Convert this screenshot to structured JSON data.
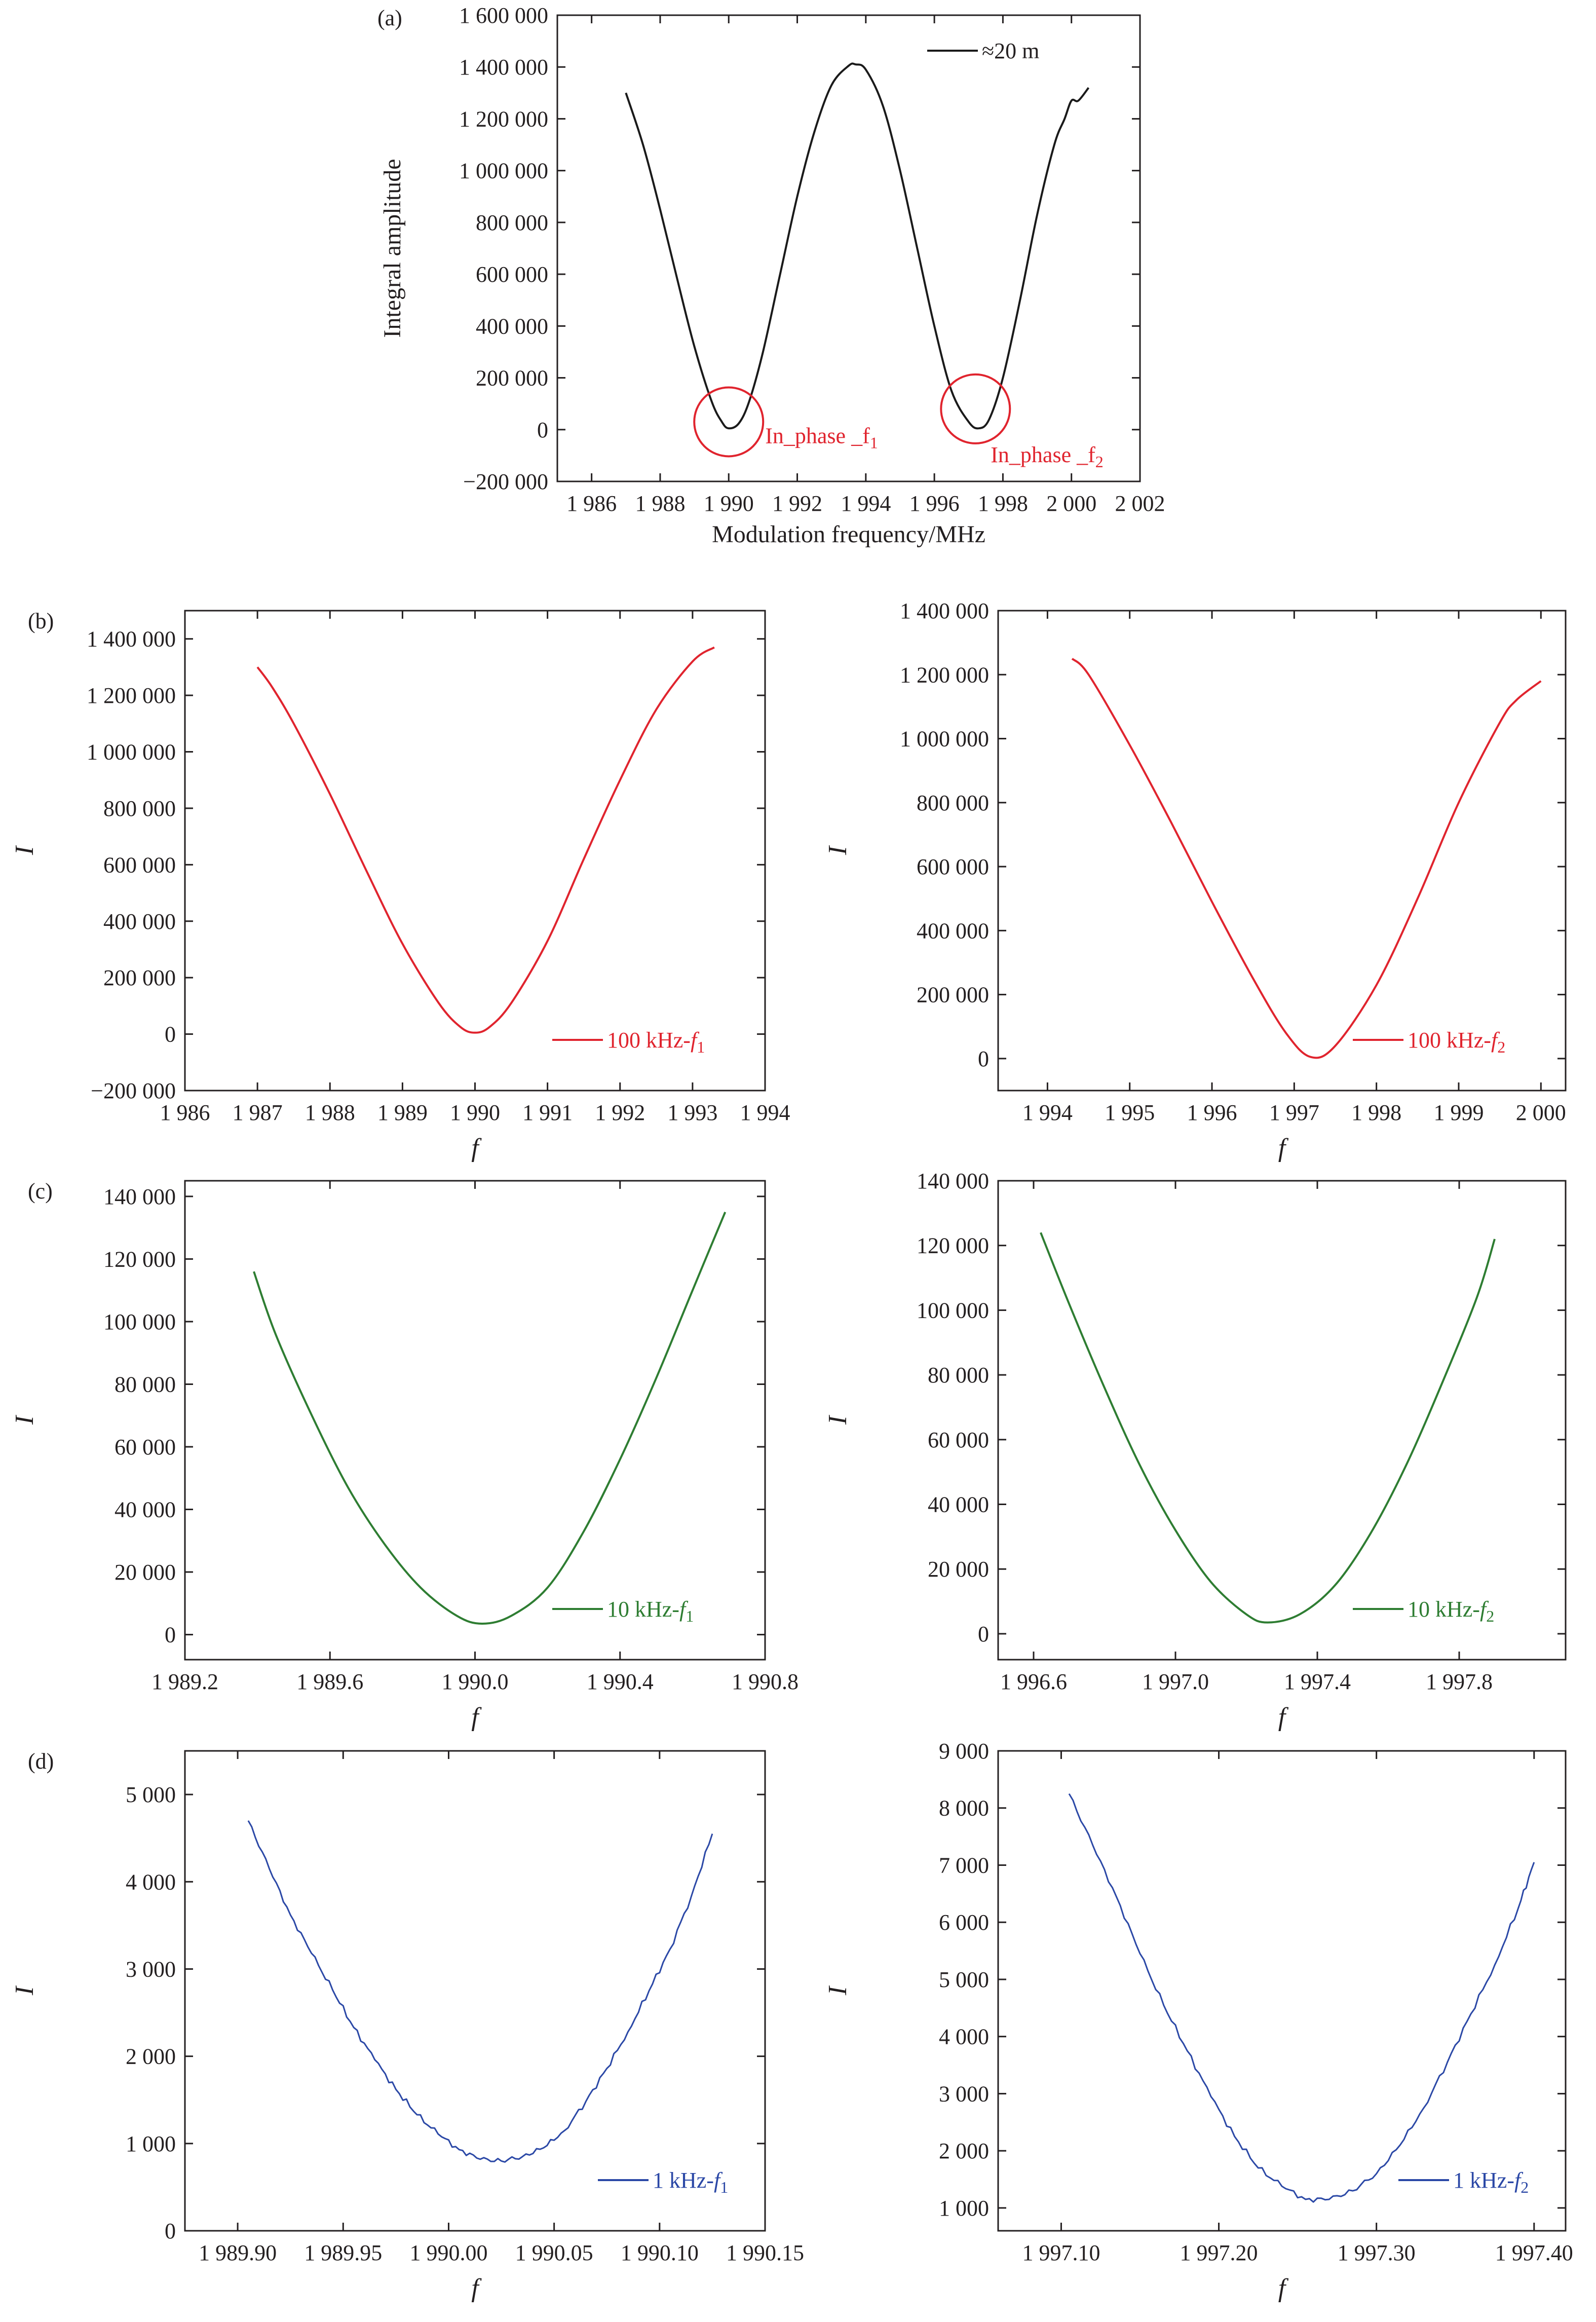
{
  "figure": {
    "background": "#ffffff",
    "axis_color": "#231f20",
    "series_colors": {
      "black": "#1a1a1a",
      "red": "#e0242e",
      "green": "#2e7d32",
      "blue": "#2b48a6"
    }
  },
  "chart_data": [
    {
      "id": "a",
      "panel_label": "(a)",
      "type": "line",
      "title": "",
      "xlabel": "Modulation frequency/MHz",
      "ylabel": "Integral amplitude",
      "xlim": [
        1985,
        2002
      ],
      "ylim": [
        -200000,
        1600000
      ],
      "xticks": [
        1986,
        1988,
        1990,
        1992,
        1994,
        1996,
        1998,
        2000,
        2002
      ],
      "xtick_labels": [
        "1 986",
        "1 988",
        "1 990",
        "1 992",
        "1 994",
        "1 996",
        "1 998",
        "2 000",
        "2 002"
      ],
      "yticks": [
        -200000,
        0,
        200000,
        400000,
        600000,
        800000,
        1000000,
        1200000,
        1400000,
        1600000
      ],
      "ytick_labels": [
        "−200 000",
        "0",
        "200 000",
        "400 000",
        "600 000",
        "800 000",
        "1 000 000",
        "1 200 000",
        "1 400 000",
        "1 600 000"
      ],
      "legend": {
        "position": "top-right",
        "label": "≈20 m",
        "sub": ""
      },
      "series": [
        {
          "name": "≈20 m",
          "color": "#1a1a1a",
          "x": [
            1987.0,
            1987.5,
            1988.0,
            1988.5,
            1989.0,
            1989.5,
            1989.8,
            1990.0,
            1990.3,
            1990.6,
            1991.0,
            1991.5,
            1992.0,
            1992.5,
            1993.0,
            1993.5,
            1993.7,
            1994.0,
            1994.5,
            1995.0,
            1995.5,
            1996.0,
            1996.5,
            1997.0,
            1997.3,
            1997.6,
            1998.0,
            1998.5,
            1999.0,
            1999.5,
            1999.8,
            2000.0,
            2000.2,
            2000.5
          ],
          "y": [
            1300000,
            1100000,
            850000,
            580000,
            320000,
            110000,
            30000,
            5000,
            25000,
            110000,
            300000,
            600000,
            900000,
            1150000,
            1330000,
            1405000,
            1410000,
            1390000,
            1250000,
            1000000,
            700000,
            400000,
            150000,
            30000,
            5000,
            40000,
            200000,
            500000,
            830000,
            1100000,
            1200000,
            1270000,
            1270000,
            1320000
          ]
        }
      ],
      "annotations": [
        {
          "type": "circle",
          "x": 1990.0,
          "y": 30000,
          "label": "In_phase _f",
          "sub": "1",
          "color": "#e0242e"
        },
        {
          "type": "circle",
          "x": 1997.2,
          "y": 80000,
          "label": "In_phase _f",
          "sub": "2",
          "color": "#e0242e"
        }
      ]
    },
    {
      "id": "b1",
      "panel_label": "(b)",
      "type": "line",
      "xlabel": "f",
      "ylabel": "I",
      "xlim": [
        1986,
        1994
      ],
      "ylim": [
        -200000,
        1500000
      ],
      "xticks": [
        1986,
        1987,
        1988,
        1989,
        1990,
        1991,
        1992,
        1993,
        1994
      ],
      "xtick_labels": [
        "1 986",
        "1 987",
        "1 988",
        "1 989",
        "1 990",
        "1 991",
        "1 992",
        "1 993",
        "1 994"
      ],
      "yticks": [
        -200000,
        0,
        200000,
        400000,
        600000,
        800000,
        1000000,
        1200000,
        1400000
      ],
      "ytick_labels": [
        "−200 000",
        "0",
        "200 000",
        "400 000",
        "600 000",
        "800 000",
        "1 000 000",
        "1 200 000",
        "1 400 000"
      ],
      "legend": {
        "position": "bottom-right",
        "label": "100 kHz-f",
        "sub": "1"
      },
      "series": [
        {
          "name": "100 kHz-f1",
          "color": "#e0242e",
          "x": [
            1987.0,
            1987.2,
            1987.5,
            1988.0,
            1988.5,
            1989.0,
            1989.5,
            1989.8,
            1990.0,
            1990.2,
            1990.5,
            1991.0,
            1991.5,
            1992.0,
            1992.5,
            1993.0,
            1993.3
          ],
          "y": [
            1300000,
            1230000,
            1100000,
            850000,
            580000,
            320000,
            110000,
            25000,
            5000,
            25000,
            110000,
            330000,
            620000,
            900000,
            1150000,
            1320000,
            1370000
          ]
        }
      ]
    },
    {
      "id": "b2",
      "panel_label": "",
      "type": "line",
      "xlabel": "f",
      "ylabel": "I",
      "xlim": [
        1993.4,
        2000.3
      ],
      "ylim": [
        -100000,
        1400000
      ],
      "xticks": [
        1994,
        1995,
        1996,
        1997,
        1998,
        1999,
        2000
      ],
      "xtick_labels": [
        "1 994",
        "1 995",
        "1 996",
        "1 997",
        "1 998",
        "1 999",
        "2 000"
      ],
      "yticks": [
        0,
        200000,
        400000,
        600000,
        800000,
        1000000,
        1200000,
        1400000
      ],
      "ytick_labels": [
        "0",
        "200 000",
        "400 000",
        "600 000",
        "800 000",
        "1 000 000",
        "1 200 000",
        "1 400 000"
      ],
      "legend": {
        "position": "bottom-right",
        "label": "100 kHz-f",
        "sub": "2"
      },
      "series": [
        {
          "name": "100 kHz-f2",
          "color": "#e0242e",
          "x": [
            1994.3,
            1994.5,
            1995.0,
            1995.5,
            1996.0,
            1996.5,
            1996.9,
            1997.2,
            1997.5,
            1998.0,
            1998.5,
            1999.0,
            1999.5,
            1999.7,
            2000.0
          ],
          "y": [
            1250000,
            1200000,
            980000,
            740000,
            490000,
            250000,
            80000,
            5000,
            40000,
            230000,
            500000,
            800000,
            1050000,
            1120000,
            1180000
          ]
        }
      ]
    },
    {
      "id": "c1",
      "panel_label": "(c)",
      "type": "line",
      "xlabel": "f",
      "ylabel": "I",
      "xlim": [
        1989.2,
        1990.8
      ],
      "ylim": [
        -8000,
        145000
      ],
      "xticks": [
        1989.2,
        1989.6,
        1990.0,
        1990.4,
        1990.8
      ],
      "xtick_labels": [
        "1 989.2",
        "1 989.6",
        "1 990.0",
        "1 990.4",
        "1 990.8"
      ],
      "yticks": [
        0,
        20000,
        40000,
        60000,
        80000,
        100000,
        120000,
        140000
      ],
      "ytick_labels": [
        "0",
        "20 000",
        "40 000",
        "60 000",
        "80 000",
        "100 000",
        "120 000",
        "140 000"
      ],
      "legend": {
        "position": "bottom-right",
        "label": "10 kHz-f",
        "sub": "1"
      },
      "series": [
        {
          "name": "10 kHz-f1",
          "color": "#2e7d32",
          "x": [
            1989.39,
            1989.45,
            1989.55,
            1989.65,
            1989.75,
            1989.85,
            1989.95,
            1990.02,
            1990.1,
            1990.2,
            1990.3,
            1990.4,
            1990.5,
            1990.6,
            1990.69
          ],
          "y": [
            116000,
            96000,
            70000,
            47000,
            29000,
            15000,
            6000,
            3500,
            6000,
            15000,
            33000,
            56000,
            82000,
            110000,
            135000
          ]
        }
      ]
    },
    {
      "id": "c2",
      "panel_label": "",
      "type": "line",
      "xlabel": "f",
      "ylabel": "I",
      "xlim": [
        1996.5,
        1998.1
      ],
      "ylim": [
        -8000,
        140000
      ],
      "xticks": [
        1996.6,
        1997.0,
        1997.4,
        1997.8
      ],
      "xtick_labels": [
        "1 996.6",
        "1 997.0",
        "1 997.4",
        "1 997.8"
      ],
      "yticks": [
        0,
        20000,
        40000,
        60000,
        80000,
        100000,
        120000,
        140000
      ],
      "ytick_labels": [
        "0",
        "20 000",
        "40 000",
        "60 000",
        "80 000",
        "100 000",
        "120 000",
        "140 000"
      ],
      "legend": {
        "position": "bottom-right",
        "label": "10 kHz-f",
        "sub": "2"
      },
      "series": [
        {
          "name": "10 kHz-f2",
          "color": "#2e7d32",
          "x": [
            1996.62,
            1996.7,
            1996.8,
            1996.9,
            1997.0,
            1997.1,
            1997.2,
            1997.26,
            1997.35,
            1997.45,
            1997.55,
            1997.65,
            1997.75,
            1997.85,
            1997.9
          ],
          "y": [
            124000,
            102000,
            76000,
            52000,
            32000,
            16000,
            6000,
            3500,
            6000,
            15000,
            31000,
            52000,
            77000,
            104000,
            122000
          ]
        }
      ]
    },
    {
      "id": "d1",
      "panel_label": "(d)",
      "type": "line",
      "xlabel": "f",
      "ylabel": "I",
      "xlim": [
        1989.875,
        1990.15
      ],
      "ylim": [
        0,
        5500
      ],
      "xticks": [
        1989.9,
        1989.95,
        1990.0,
        1990.05,
        1990.1,
        1990.15
      ],
      "xtick_labels": [
        "1 989.90",
        "1 989.95",
        "1 990.00",
        "1 990.05",
        "1 990.10",
        "1 990.15"
      ],
      "yticks": [
        0,
        1000,
        2000,
        3000,
        4000,
        5000
      ],
      "ytick_labels": [
        "0",
        "1 000",
        "2 000",
        "3 000",
        "4 000",
        "5 000"
      ],
      "legend": {
        "position": "bottom-right",
        "label": "1 kHz-f",
        "sub": "1"
      },
      "series": [
        {
          "name": "1 kHz-f1",
          "color": "#2b48a6",
          "x": [
            1989.905,
            1989.915,
            1989.925,
            1989.935,
            1989.945,
            1989.955,
            1989.965,
            1989.975,
            1989.985,
            1989.995,
            1990.005,
            1990.015,
            1990.025,
            1990.035,
            1990.045,
            1990.055,
            1990.065,
            1990.075,
            1990.085,
            1990.095,
            1990.105,
            1990.115,
            1990.125
          ],
          "y": [
            4700,
            4150,
            3620,
            3180,
            2760,
            2330,
            1960,
            1620,
            1330,
            1110,
            930,
            820,
            800,
            850,
            950,
            1150,
            1480,
            1860,
            2280,
            2750,
            3230,
            3830,
            4550
          ]
        }
      ]
    },
    {
      "id": "d2",
      "panel_label": "",
      "type": "line",
      "xlabel": "f",
      "ylabel": "I",
      "xlim": [
        1997.06,
        1997.42
      ],
      "ylim": [
        600,
        9000
      ],
      "xticks": [
        1997.1,
        1997.2,
        1997.3,
        1997.4
      ],
      "xtick_labels": [
        "1 997.10",
        "1 997.20",
        "1 997.30",
        "1 997.40"
      ],
      "yticks": [
        1000,
        2000,
        3000,
        4000,
        5000,
        6000,
        7000,
        8000,
        9000
      ],
      "ytick_labels": [
        "1 000",
        "2 000",
        "3 000",
        "4 000",
        "5 000",
        "6 000",
        "7 000",
        "8 000",
        "9 000"
      ],
      "legend": {
        "position": "bottom-right",
        "label": "1 kHz-f",
        "sub": "2"
      },
      "series": [
        {
          "name": "1 kHz-f2",
          "color": "#2b48a6",
          "x": [
            1997.105,
            1997.12,
            1997.135,
            1997.15,
            1997.165,
            1997.18,
            1997.195,
            1997.21,
            1997.225,
            1997.24,
            1997.255,
            1997.27,
            1997.285,
            1997.3,
            1997.315,
            1997.33,
            1997.345,
            1997.36,
            1997.375,
            1997.39,
            1997.4
          ],
          "y": [
            8250,
            7350,
            6450,
            5450,
            4550,
            3750,
            2950,
            2250,
            1700,
            1380,
            1150,
            1150,
            1300,
            1600,
            2100,
            2750,
            3550,
            4400,
            5250,
            6250,
            7050
          ]
        }
      ]
    }
  ]
}
